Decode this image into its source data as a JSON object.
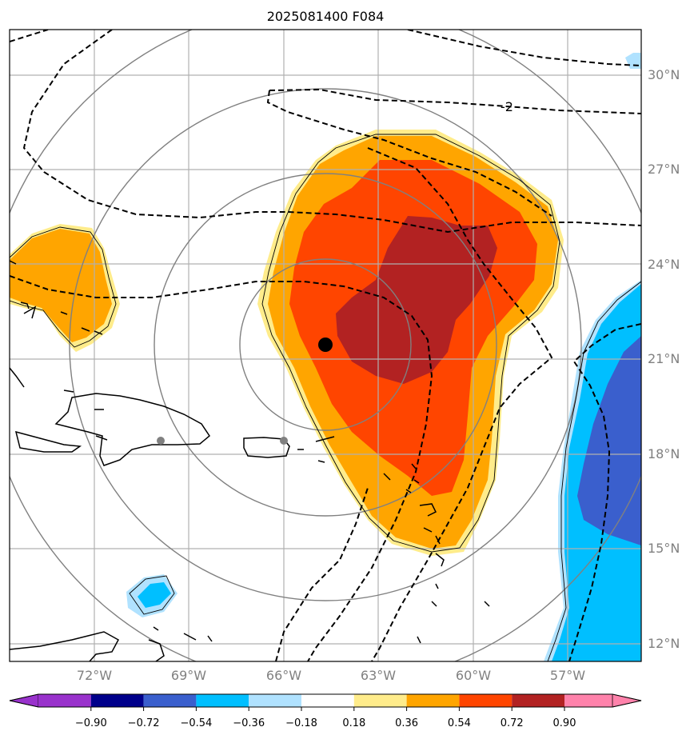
{
  "title": "2025081400 F084",
  "map": {
    "lat_labels": [
      "30°N",
      "27°N",
      "24°N",
      "21°N",
      "18°N",
      "15°N",
      "12°N"
    ],
    "lon_labels": [
      "72°W",
      "69°W",
      "66°W",
      "63°W",
      "60°W",
      "57°W"
    ],
    "contour_label": "-2",
    "storm_center": {
      "lat": 21.4,
      "lon": -64.8
    }
  },
  "colorbar": {
    "tick_labels": [
      "−0.90",
      "−0.72",
      "−0.54",
      "−0.36",
      "−0.18",
      "0.18",
      "0.36",
      "0.54",
      "0.72",
      "0.90"
    ],
    "colors": [
      "#9932CC",
      "#00008B",
      "#3A5FCD",
      "#00BFFF",
      "#B0E2FF",
      "#FFFFFF",
      "#FFEC8B",
      "#FFA500",
      "#FF4500",
      "#B22222",
      "#FF82AB"
    ]
  }
}
